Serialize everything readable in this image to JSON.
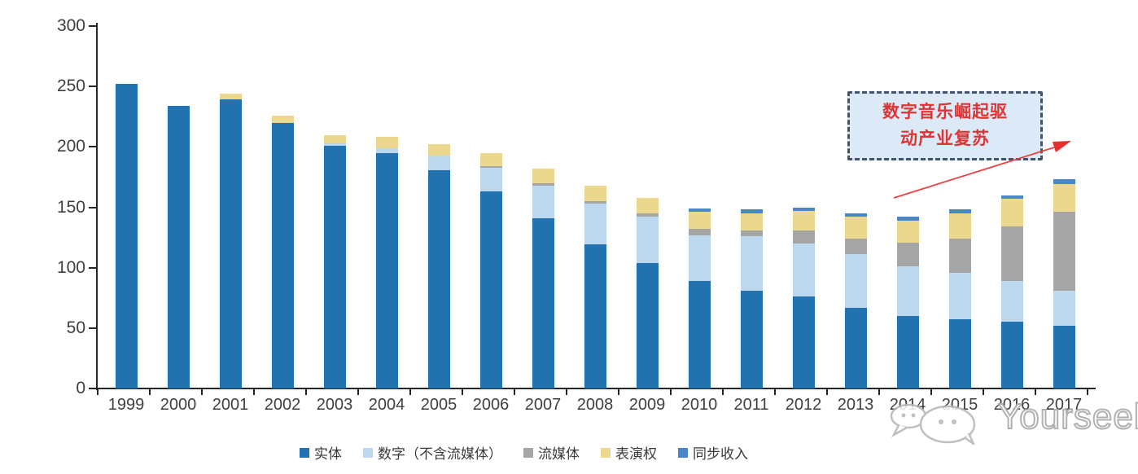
{
  "chart_data": {
    "type": "bar",
    "stacked": true,
    "title": "",
    "xlabel": "",
    "ylabel": "",
    "categories": [
      "1999",
      "2000",
      "2001",
      "2002",
      "2003",
      "2004",
      "2005",
      "2006",
      "2007",
      "2008",
      "2009",
      "2010",
      "2011",
      "2012",
      "2013",
      "2014",
      "2015",
      "2016",
      "2017"
    ],
    "series": [
      {
        "name": "实体",
        "color": "#2272b0",
        "values": [
          252,
          234,
          239,
          220,
          201,
          195,
          181,
          163,
          141,
          119,
          104,
          89,
          81,
          76,
          67,
          60,
          57,
          55,
          52
        ]
      },
      {
        "name": "数字（不含流媒体）",
        "color": "#bdd7ee",
        "values": [
          0,
          0,
          0,
          0,
          2,
          4,
          12,
          20,
          27,
          34,
          38,
          38,
          45,
          44,
          44,
          41,
          39,
          34,
          29
        ]
      },
      {
        "name": "流媒体",
        "color": "#a5a5a5",
        "values": [
          0,
          0,
          0,
          0,
          0,
          0,
          0,
          1,
          2,
          2,
          3,
          5,
          5,
          11,
          13,
          20,
          28,
          45,
          65
        ]
      },
      {
        "name": "表演权",
        "color": "#ebd88e",
        "values": [
          0,
          0,
          5,
          6,
          7,
          9,
          9,
          11,
          12,
          13,
          13,
          14,
          14,
          16,
          18,
          18,
          21,
          23,
          23
        ]
      },
      {
        "name": "同步收入",
        "color": "#4a86c8",
        "values": [
          0,
          0,
          0,
          0,
          0,
          0,
          0,
          0,
          0,
          0,
          0,
          3,
          3,
          3,
          3,
          3,
          3,
          3,
          4
        ]
      }
    ],
    "ylim": [
      0,
      300
    ],
    "yticks": [
      0,
      50,
      100,
      150,
      200,
      250,
      300
    ],
    "grid": false,
    "legend_position": "bottom"
  },
  "annotation": {
    "line1": "数字音乐崛起驱",
    "line2": "动产业复苏",
    "box_fill": "#dce9f7",
    "border_color": "#44546a",
    "text_color": "#e03434",
    "arrow_color": "#ef4040"
  },
  "watermark": {
    "text": "Yourseeker"
  }
}
